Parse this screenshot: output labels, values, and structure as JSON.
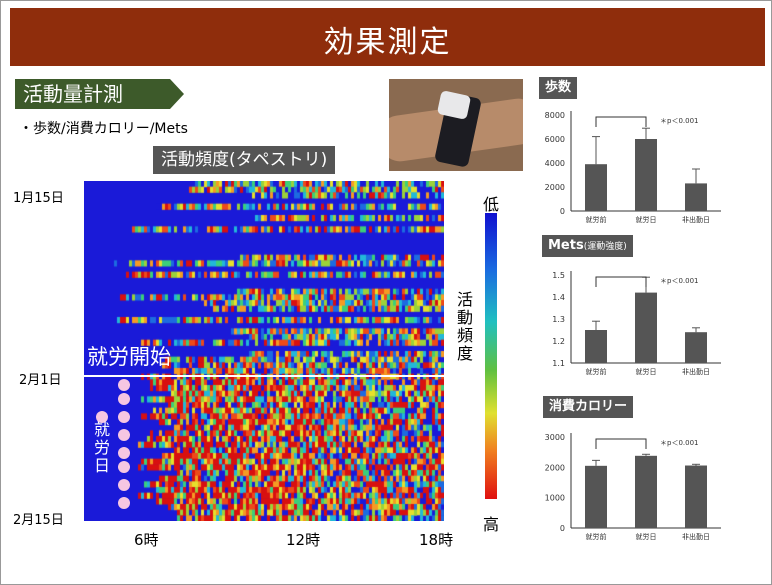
{
  "title": "効果測定",
  "section_tag": "活動量計測",
  "subtitle": "・歩数/消費カロリー/Mets",
  "tapestry_title": "活動頻度(タペストリ)",
  "heatmap": {
    "y_labels": [
      "1月15日",
      "2月1日",
      "2月15日"
    ],
    "x_labels": [
      "6時",
      "12時",
      "18時"
    ],
    "overlay_text": "就労開始",
    "work_day_label": [
      "就",
      "労",
      "日"
    ],
    "legend_low": "低",
    "legend_high": "高",
    "legend_title": [
      "活",
      "動",
      "頻",
      "度"
    ]
  },
  "chart_data": [
    {
      "type": "bar",
      "title": "歩数",
      "title_note": "",
      "categories": [
        "就労前",
        "就労日",
        "非出勤日"
      ],
      "values": [
        3900,
        6000,
        2300
      ],
      "errors": [
        2300,
        900,
        1200
      ],
      "ylim": [
        0,
        8000
      ],
      "ticks": [
        "0",
        "2000",
        "4000",
        "6000",
        "8000"
      ],
      "tick_values": [
        0,
        2000,
        4000,
        6000,
        8000
      ],
      "annotation": "＊p＜0.001",
      "bracket": [
        0,
        1
      ]
    },
    {
      "type": "bar",
      "title": "Mets",
      "title_note": "(運動強度)",
      "categories": [
        "就労前",
        "就労日",
        "非出勤日"
      ],
      "values": [
        1.25,
        1.42,
        1.24
      ],
      "errors": [
        0.04,
        0.07,
        0.02
      ],
      "ylim": [
        1.1,
        1.5
      ],
      "ticks": [
        "1.1",
        "1.2",
        "1.3",
        "1.4",
        "1.5"
      ],
      "tick_values": [
        1.1,
        1.2,
        1.3,
        1.4,
        1.5
      ],
      "annotation": "＊p＜0.001",
      "bracket": [
        0,
        1
      ]
    },
    {
      "type": "bar",
      "title": "消費カロリー",
      "title_note": "",
      "categories": [
        "就労前",
        "就労日",
        "非出勤日"
      ],
      "values": [
        2050,
        2380,
        2060
      ],
      "errors": [
        180,
        50,
        40
      ],
      "ylim": [
        0,
        3000
      ],
      "ticks": [
        "0",
        "1000",
        "2000",
        "3000"
      ],
      "tick_values": [
        0,
        1000,
        2000,
        3000
      ],
      "annotation": "＊p＜0.001",
      "bracket": [
        0,
        1
      ]
    }
  ],
  "colors": {
    "title_bar": "#8f2d0c",
    "tag": "#3d5a2a",
    "bar": "#555555",
    "heat_bg": "#1a1ad8"
  }
}
